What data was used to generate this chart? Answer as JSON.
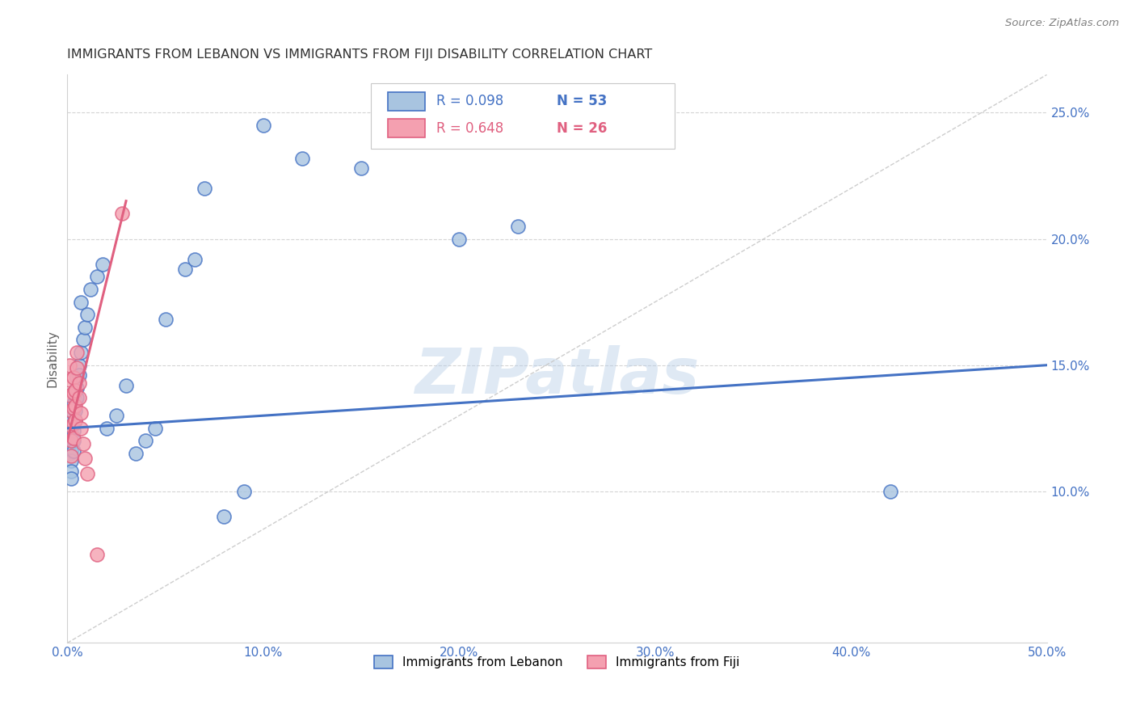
{
  "title": "IMMIGRANTS FROM LEBANON VS IMMIGRANTS FROM FIJI DISABILITY CORRELATION CHART",
  "source": "Source: ZipAtlas.com",
  "ylabel_label": "Disability",
  "xlim": [
    0.0,
    0.5
  ],
  "ylim": [
    0.04,
    0.265
  ],
  "xticks": [
    0.0,
    0.1,
    0.2,
    0.3,
    0.4,
    0.5
  ],
  "xticklabels": [
    "0.0%",
    "10.0%",
    "20.0%",
    "30.0%",
    "40.0%",
    "50.0%"
  ],
  "yticks": [
    0.1,
    0.15,
    0.2,
    0.25
  ],
  "yticklabels": [
    "10.0%",
    "15.0%",
    "20.0%",
    "25.0%"
  ],
  "legend_r_lebanon": "R = 0.098",
  "legend_n_lebanon": "N = 53",
  "legend_r_fiji": "R = 0.648",
  "legend_n_fiji": "N = 26",
  "color_lebanon": "#a8c4e0",
  "color_fiji": "#f4a0b0",
  "color_lebanon_line": "#4472c4",
  "color_fiji_line": "#e06080",
  "color_diag_line": "#c8c8c8",
  "color_axis_text": "#4472c4",
  "watermark_text": "ZIPatlas",
  "lebanon_line_x0": 0.0,
  "lebanon_line_y0": 0.125,
  "lebanon_line_x1": 0.5,
  "lebanon_line_y1": 0.15,
  "fiji_line_x0": 0.0,
  "fiji_line_y0": 0.12,
  "fiji_line_x1": 0.03,
  "fiji_line_y1": 0.215,
  "lebanon_x": [
    0.001,
    0.001,
    0.001,
    0.001,
    0.001,
    0.002,
    0.002,
    0.002,
    0.002,
    0.002,
    0.002,
    0.002,
    0.003,
    0.003,
    0.003,
    0.003,
    0.003,
    0.003,
    0.004,
    0.004,
    0.004,
    0.004,
    0.005,
    0.005,
    0.005,
    0.006,
    0.006,
    0.007,
    0.007,
    0.008,
    0.009,
    0.01,
    0.012,
    0.015,
    0.018,
    0.02,
    0.025,
    0.03,
    0.035,
    0.04,
    0.045,
    0.05,
    0.06,
    0.065,
    0.07,
    0.08,
    0.09,
    0.1,
    0.12,
    0.15,
    0.2,
    0.23,
    0.42
  ],
  "lebanon_y": [
    0.13,
    0.127,
    0.123,
    0.119,
    0.115,
    0.128,
    0.124,
    0.12,
    0.116,
    0.112,
    0.108,
    0.105,
    0.135,
    0.131,
    0.127,
    0.124,
    0.12,
    0.116,
    0.14,
    0.136,
    0.132,
    0.128,
    0.145,
    0.141,
    0.137,
    0.15,
    0.146,
    0.155,
    0.175,
    0.16,
    0.165,
    0.17,
    0.18,
    0.185,
    0.19,
    0.125,
    0.13,
    0.142,
    0.115,
    0.12,
    0.125,
    0.168,
    0.188,
    0.192,
    0.22,
    0.09,
    0.1,
    0.245,
    0.232,
    0.228,
    0.2,
    0.205,
    0.1
  ],
  "fiji_x": [
    0.001,
    0.001,
    0.001,
    0.002,
    0.002,
    0.002,
    0.002,
    0.003,
    0.003,
    0.003,
    0.003,
    0.003,
    0.004,
    0.004,
    0.004,
    0.005,
    0.005,
    0.006,
    0.006,
    0.007,
    0.007,
    0.008,
    0.009,
    0.01,
    0.015,
    0.028
  ],
  "fiji_y": [
    0.15,
    0.144,
    0.138,
    0.132,
    0.126,
    0.12,
    0.114,
    0.145,
    0.139,
    0.133,
    0.127,
    0.121,
    0.14,
    0.134,
    0.128,
    0.155,
    0.149,
    0.143,
    0.137,
    0.131,
    0.125,
    0.119,
    0.113,
    0.107,
    0.075,
    0.21
  ]
}
